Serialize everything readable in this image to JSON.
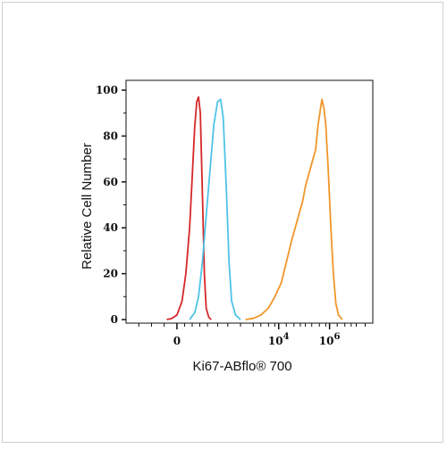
{
  "chart_data": {
    "type": "line",
    "title": "",
    "xlabel": "Ki67-ABflo",
    "xlabel_suffix": "® 700",
    "ylabel": "Relative Cell Number",
    "ylim": [
      0,
      100
    ],
    "y_ticks": [
      "0",
      "20",
      "40",
      "60",
      "80",
      "100"
    ],
    "x_ticks": [
      {
        "label": "0",
        "exp": "",
        "x": 0
      },
      {
        "label": "10",
        "exp": "4",
        "x": 4
      },
      {
        "label": "10",
        "exp": "6",
        "x": 6
      }
    ],
    "xlim": [
      -2,
      7.7
    ],
    "x_scale": "biexponential",
    "grid": false,
    "series": [
      {
        "color": "#d62728",
        "x": [
          -0.4,
          -0.2,
          0.0,
          0.2,
          0.35,
          0.5,
          0.6,
          0.7,
          0.78,
          0.85,
          0.92,
          1.0,
          1.08,
          1.15,
          1.25,
          1.35
        ],
        "y": [
          0,
          0.5,
          2,
          8,
          20,
          40,
          62,
          84,
          95,
          97,
          90,
          55,
          20,
          5,
          1,
          0
        ]
      },
      {
        "color": "#4fc3e8",
        "x": [
          0.5,
          0.7,
          0.85,
          1.0,
          1.15,
          1.3,
          1.45,
          1.6,
          1.72,
          1.82,
          1.95,
          2.05,
          2.15,
          2.3,
          2.5
        ],
        "y": [
          0,
          3,
          10,
          25,
          45,
          65,
          85,
          95,
          96,
          88,
          55,
          25,
          8,
          2,
          0
        ]
      },
      {
        "color": "#f0962a",
        "x": [
          2.7,
          3.0,
          3.3,
          3.6,
          3.85,
          4.1,
          4.3,
          4.5,
          4.65,
          4.8,
          4.95,
          5.05,
          5.15,
          5.25,
          5.35,
          5.45,
          5.55,
          5.62,
          5.7,
          5.78,
          5.85,
          5.95,
          6.05,
          6.15,
          6.25,
          6.35,
          6.5
        ],
        "y": [
          0,
          0.5,
          2,
          5,
          10,
          16,
          25,
          34,
          40,
          46,
          52,
          58,
          62,
          66,
          70,
          74,
          85,
          90,
          96,
          92,
          85,
          65,
          40,
          20,
          7,
          2,
          0
        ]
      }
    ]
  }
}
